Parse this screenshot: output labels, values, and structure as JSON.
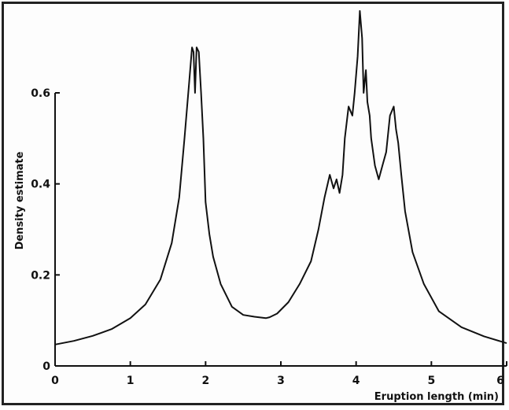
{
  "chart_data": {
    "type": "line",
    "title": "",
    "xlabel": "Eruption length (min)",
    "ylabel": "Density estimate",
    "xlim": [
      0,
      6
    ],
    "ylim": [
      0,
      0.6
    ],
    "xticks": [
      "0",
      "1",
      "2",
      "3",
      "4",
      "5",
      "6"
    ],
    "yticks": [
      "0",
      "0.2",
      "0.4",
      "0.6"
    ],
    "grid": false,
    "line_color": "#111111",
    "series": [
      {
        "x": [
          0,
          0.25,
          0.5,
          0.75,
          1.0,
          1.2,
          1.4,
          1.55,
          1.65,
          1.72,
          1.78,
          1.82,
          1.84,
          1.86,
          1.88,
          1.91,
          1.94,
          1.97,
          2.0,
          2.05,
          2.1,
          2.2,
          2.35,
          2.5,
          2.65,
          2.8,
          2.85,
          2.95,
          3.1,
          3.25,
          3.4,
          3.5,
          3.58,
          3.65,
          3.7,
          3.74,
          3.78,
          3.82,
          3.85,
          3.9,
          3.95,
          3.98,
          4.02,
          4.05,
          4.08,
          4.1,
          4.13,
          4.15,
          4.18,
          4.2,
          4.25,
          4.3,
          4.35,
          4.4,
          4.45,
          4.5,
          4.53,
          4.56,
          4.6,
          4.65,
          4.75,
          4.9,
          5.1,
          5.4,
          5.7,
          6.0
        ],
        "y": [
          0.047,
          0.055,
          0.066,
          0.081,
          0.105,
          0.135,
          0.19,
          0.27,
          0.37,
          0.5,
          0.62,
          0.7,
          0.69,
          0.6,
          0.7,
          0.69,
          0.6,
          0.5,
          0.36,
          0.29,
          0.24,
          0.18,
          0.13,
          0.112,
          0.108,
          0.105,
          0.107,
          0.115,
          0.14,
          0.18,
          0.23,
          0.3,
          0.37,
          0.42,
          0.39,
          0.41,
          0.38,
          0.42,
          0.5,
          0.57,
          0.55,
          0.6,
          0.68,
          0.78,
          0.72,
          0.6,
          0.65,
          0.58,
          0.55,
          0.5,
          0.44,
          0.41,
          0.44,
          0.47,
          0.55,
          0.57,
          0.52,
          0.49,
          0.42,
          0.34,
          0.25,
          0.18,
          0.12,
          0.085,
          0.065,
          0.05
        ]
      }
    ]
  }
}
